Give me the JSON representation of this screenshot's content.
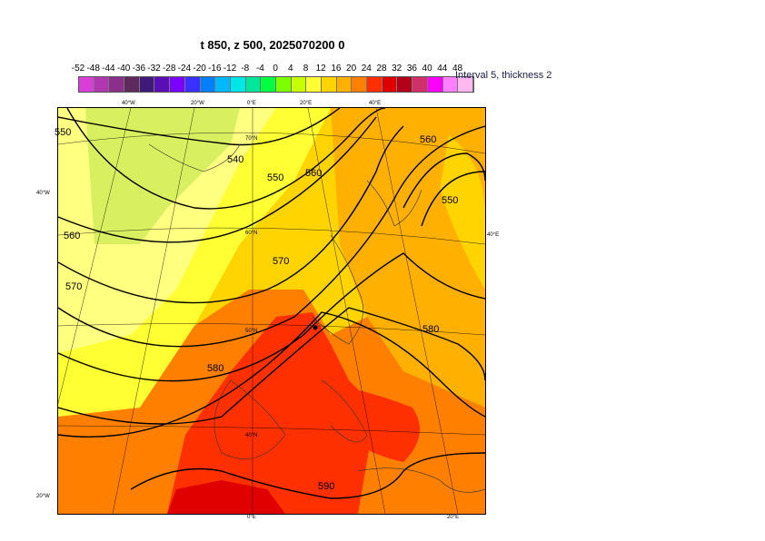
{
  "title": "t 850, z 500, 2025070200 0",
  "legend": {
    "ticks": [
      "-52",
      "-48",
      "-44",
      "-40",
      "-36",
      "-32",
      "-28",
      "-24",
      "-20",
      "-16",
      "-12",
      "-8",
      "-4",
      "0",
      "4",
      "8",
      "12",
      "16",
      "20",
      "24",
      "28",
      "32",
      "36",
      "40",
      "44",
      "48"
    ],
    "colors": [
      "#d93ed9",
      "#b037b0",
      "#8a2f8a",
      "#5e2a5e",
      "#3f1a7a",
      "#5a0fb5",
      "#7a00ff",
      "#3a30ff",
      "#0080ff",
      "#00b8ff",
      "#00e6e6",
      "#00e69a",
      "#00ff40",
      "#7dff00",
      "#c8ff00",
      "#ffff33",
      "#ffd400",
      "#ffb000",
      "#ff8000",
      "#ff3000",
      "#e00000",
      "#b40018",
      "#d0306a",
      "#ff00ff",
      "#ff80ff",
      "#ffb8f0"
    ],
    "note": "Interval 5, thickness 2"
  },
  "map": {
    "top_labels": [
      "40°W",
      "20°W",
      "0°E",
      "20°E",
      "40°E"
    ],
    "left_labels": [
      "40°W",
      "20°W"
    ],
    "right_labels": [
      "40°E"
    ],
    "bottom_labels": [
      "0°E",
      "20°E"
    ],
    "lat_labels": [
      "70°N",
      "60°N",
      "50°N",
      "40°N"
    ],
    "contour_labels": [
      "550",
      "540",
      "550",
      "560",
      "560",
      "550",
      "560",
      "570",
      "570",
      "580",
      "580",
      "590"
    ]
  }
}
